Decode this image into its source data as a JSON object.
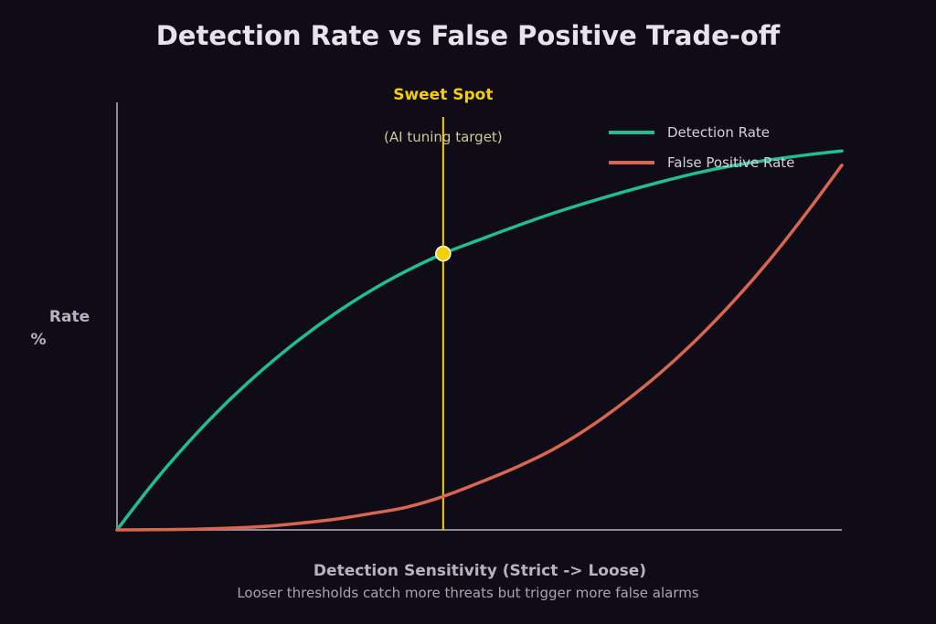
{
  "chart_data": {
    "type": "line",
    "title": "Detection Rate vs False Positive Trade-off",
    "xlabel": "Detection Sensitivity  (Strict -> Loose)",
    "ylabel_line1": "Rate",
    "ylabel_line2": "%",
    "subtitle": "Looser thresholds catch more threats but trigger more false alarms",
    "xlim": [
      0,
      100
    ],
    "ylim": [
      0,
      100
    ],
    "grid": false,
    "legend_position": "top-right",
    "series": [
      {
        "name": "Detection Rate",
        "color": "#1fbf8f",
        "points": [
          [
            0,
            0
          ],
          [
            5,
            11.5
          ],
          [
            10,
            21.8
          ],
          [
            15,
            31
          ],
          [
            20,
            39.2
          ],
          [
            25,
            46.5
          ],
          [
            30,
            53
          ],
          [
            35,
            58.7
          ],
          [
            40,
            63.6
          ],
          [
            45,
            67.8
          ],
          [
            50,
            71.2
          ],
          [
            55,
            74.5
          ],
          [
            60,
            77.6
          ],
          [
            65,
            80.4
          ],
          [
            70,
            83
          ],
          [
            75,
            85.4
          ],
          [
            80,
            87.6
          ],
          [
            85,
            89.4
          ],
          [
            90,
            90.8
          ],
          [
            95,
            92
          ],
          [
            100,
            93
          ]
        ]
      },
      {
        "name": "False Positive Rate",
        "color": "#d9664f",
        "points": [
          [
            0,
            0
          ],
          [
            5,
            0.05
          ],
          [
            10,
            0.15
          ],
          [
            15,
            0.4
          ],
          [
            20,
            0.8
          ],
          [
            25,
            1.6
          ],
          [
            30,
            2.6
          ],
          [
            35,
            4
          ],
          [
            40,
            5.6
          ],
          [
            45,
            8.2
          ],
          [
            50,
            11.6
          ],
          [
            55,
            15.3
          ],
          [
            60,
            19.6
          ],
          [
            65,
            25
          ],
          [
            70,
            31.4
          ],
          [
            75,
            38.6
          ],
          [
            80,
            46.8
          ],
          [
            85,
            56
          ],
          [
            90,
            66.2
          ],
          [
            95,
            77.5
          ],
          [
            100,
            89.5
          ]
        ]
      }
    ],
    "annotation": {
      "label": "Sweet Spot",
      "sublabel": "(AI tuning target)",
      "x": 45,
      "y": 67.8,
      "color": "#f5d000"
    },
    "axis_color": "#8d8a96"
  }
}
